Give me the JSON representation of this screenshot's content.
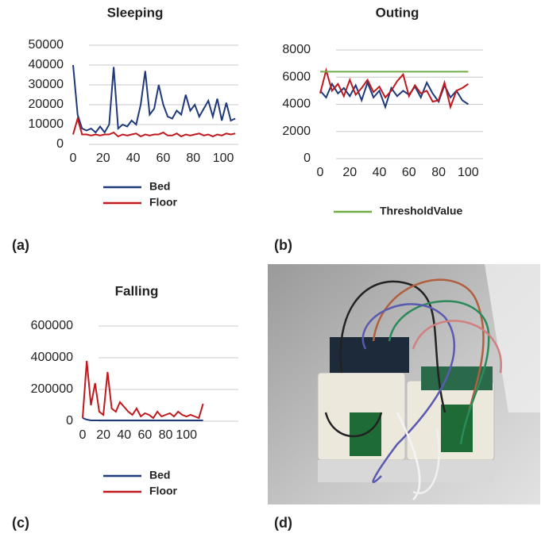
{
  "chart_data": [
    {
      "type": "line",
      "title": "Sleeping",
      "panel": "(a)",
      "x": [
        0,
        3,
        6,
        9,
        12,
        15,
        18,
        21,
        24,
        27,
        30,
        33,
        36,
        39,
        42,
        45,
        48,
        51,
        54,
        57,
        60,
        63,
        66,
        69,
        72,
        75,
        78,
        81,
        84,
        87,
        90,
        93,
        96,
        99,
        102,
        105,
        108
      ],
      "series": [
        {
          "name": "Bed",
          "color": "#1f3a7a",
          "values": [
            40000,
            15000,
            8000,
            7000,
            8000,
            6000,
            9000,
            6000,
            10000,
            39000,
            8000,
            10000,
            9000,
            12000,
            10000,
            20000,
            37000,
            15000,
            18000,
            30000,
            20000,
            14000,
            13000,
            17000,
            15000,
            25000,
            17000,
            20000,
            14000,
            18000,
            22000,
            14000,
            23000,
            12000,
            21000,
            12000,
            13000
          ]
        },
        {
          "name": "Floor",
          "color": "#c0181c",
          "values": [
            5000,
            13000,
            5000,
            5000,
            4500,
            5000,
            4500,
            5000,
            5000,
            6000,
            4000,
            5000,
            4500,
            5000,
            5500,
            4000,
            5000,
            4500,
            5000,
            5000,
            6000,
            4500,
            4500,
            5500,
            4000,
            5000,
            4500,
            5000,
            5500,
            4500,
            5000,
            4000,
            5000,
            4500,
            5500,
            5000,
            5500
          ]
        }
      ],
      "xlim": [
        0,
        110
      ],
      "xticks": [
        0,
        20,
        40,
        60,
        80,
        100
      ],
      "ylim": [
        0,
        50000
      ],
      "yticks": [
        0,
        10000,
        20000,
        30000,
        40000,
        50000
      ],
      "grid": true
    },
    {
      "type": "line",
      "title": "Outing",
      "panel": "(b)",
      "x": [
        0,
        4,
        8,
        12,
        16,
        20,
        24,
        28,
        32,
        36,
        40,
        44,
        48,
        52,
        56,
        60,
        64,
        68,
        72,
        76,
        80,
        84,
        88,
        92,
        96,
        100
      ],
      "series": [
        {
          "color": "#1f3a7a",
          "values": [
            5000,
            4500,
            5500,
            4800,
            5200,
            4600,
            5400,
            4300,
            5600,
            4500,
            5000,
            3800,
            5200,
            4600,
            5000,
            4700,
            5300,
            4500,
            5600,
            4800,
            4200,
            5400,
            4500,
            5000,
            4300,
            4000
          ]
        },
        {
          "color": "#c0181c",
          "values": [
            4800,
            6500,
            5000,
            5500,
            4600,
            5800,
            4700,
            5200,
            5800,
            4900,
            5300,
            4500,
            5000,
            5700,
            6200,
            4600,
            5400,
            4800,
            5000,
            4200,
            4300,
            5600,
            3800,
            5000,
            5200,
            5500
          ]
        },
        {
          "name": "ThresholdValue",
          "color": "#70ad47",
          "values": [
            6400,
            6400,
            6400,
            6400,
            6400,
            6400,
            6400,
            6400,
            6400,
            6400,
            6400,
            6400,
            6400,
            6400,
            6400,
            6400,
            6400,
            6400,
            6400,
            6400,
            6400,
            6400,
            6400,
            6400,
            6400,
            6400
          ]
        }
      ],
      "xlim": [
        0,
        110
      ],
      "xticks": [
        0,
        20,
        40,
        60,
        80,
        100
      ],
      "ylim": [
        0,
        8000
      ],
      "yticks": [
        0,
        2000,
        4000,
        6000,
        8000
      ],
      "grid": true
    },
    {
      "type": "line",
      "title": "Falling",
      "panel": "(c)",
      "x": [
        0,
        4,
        8,
        12,
        16,
        20,
        24,
        28,
        32,
        36,
        40,
        44,
        48,
        52,
        56,
        60,
        64,
        68,
        72,
        76,
        80,
        84,
        88,
        92,
        96,
        100,
        104,
        108,
        112,
        116
      ],
      "series": [
        {
          "name": "Bed",
          "color": "#1f3a7a",
          "values": [
            20000,
            10000,
            5000,
            5000,
            5000,
            5000,
            5000,
            5000,
            5000,
            5000,
            5000,
            5000,
            5000,
            5000,
            5000,
            5000,
            5000,
            5000,
            5000,
            5000,
            5000,
            5000,
            5000,
            5000,
            5000,
            5000,
            5000,
            5000,
            5000,
            5000
          ]
        },
        {
          "name": "Floor",
          "color": "#c0181c",
          "values": [
            20000,
            380000,
            100000,
            240000,
            60000,
            40000,
            310000,
            80000,
            60000,
            120000,
            90000,
            60000,
            40000,
            80000,
            30000,
            50000,
            40000,
            20000,
            60000,
            30000,
            40000,
            50000,
            30000,
            60000,
            40000,
            30000,
            40000,
            30000,
            20000,
            110000
          ]
        }
      ],
      "xlim": [
        0,
        150
      ],
      "xticks": [
        0,
        20,
        40,
        60,
        80,
        100
      ],
      "ylim": [
        0,
        600000
      ],
      "yticks": [
        0,
        200000,
        400000,
        600000
      ],
      "grid": true
    }
  ],
  "photo": {
    "panel": "(d)"
  }
}
